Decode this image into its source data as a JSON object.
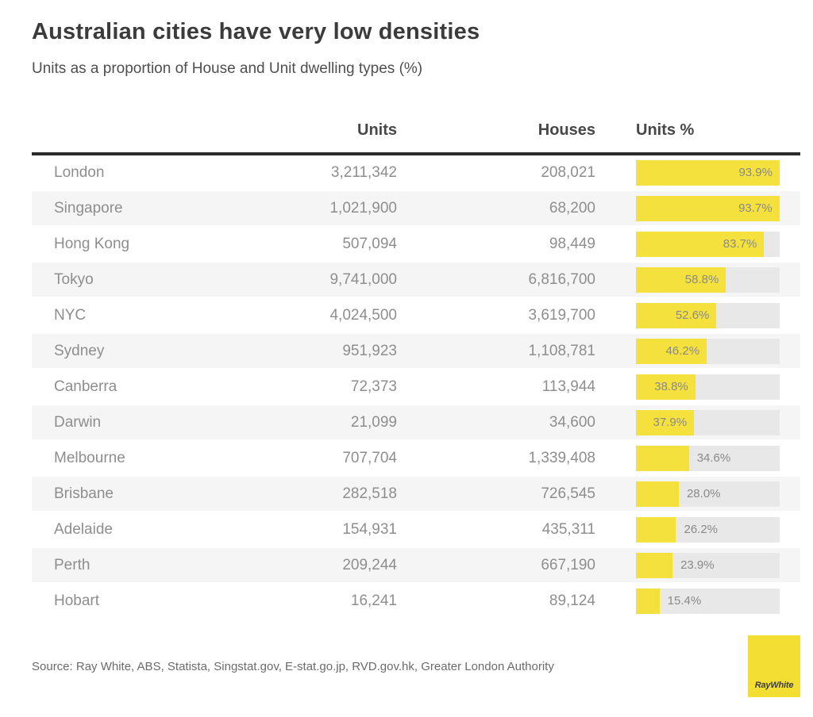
{
  "header": {
    "title": "Australian cities have very low densities",
    "subtitle": "Units as a proportion of House and Unit dwelling types (%)"
  },
  "table": {
    "columns": [
      "Units",
      "Houses",
      "Units %"
    ],
    "rows": [
      {
        "city": "London",
        "units": "3,211,342",
        "houses": "208,021",
        "pct": 93.9,
        "pct_label": "93.9%"
      },
      {
        "city": "Singapore",
        "units": "1,021,900",
        "houses": "68,200",
        "pct": 93.7,
        "pct_label": "93.7%"
      },
      {
        "city": "Hong Kong",
        "units": "507,094",
        "houses": "98,449",
        "pct": 83.7,
        "pct_label": "83.7%"
      },
      {
        "city": "Tokyo",
        "units": "9,741,000",
        "houses": "6,816,700",
        "pct": 58.8,
        "pct_label": "58.8%"
      },
      {
        "city": "NYC",
        "units": "4,024,500",
        "houses": "3,619,700",
        "pct": 52.6,
        "pct_label": "52.6%"
      },
      {
        "city": "Sydney",
        "units": "951,923",
        "houses": "1,108,781",
        "pct": 46.2,
        "pct_label": "46.2%"
      },
      {
        "city": "Canberra",
        "units": "72,373",
        "houses": "113,944",
        "pct": 38.8,
        "pct_label": "38.8%"
      },
      {
        "city": "Darwin",
        "units": "21,099",
        "houses": "34,600",
        "pct": 37.9,
        "pct_label": "37.9%"
      },
      {
        "city": "Melbourne",
        "units": "707,704",
        "houses": "1,339,408",
        "pct": 34.6,
        "pct_label": "34.6%"
      },
      {
        "city": "Brisbane",
        "units": "282,518",
        "houses": "726,545",
        "pct": 28.0,
        "pct_label": "28.0%"
      },
      {
        "city": "Adelaide",
        "units": "154,931",
        "houses": "435,311",
        "pct": 26.2,
        "pct_label": "26.2%"
      },
      {
        "city": "Perth",
        "units": "209,244",
        "houses": "667,190",
        "pct": 23.9,
        "pct_label": "23.9%"
      },
      {
        "city": "Hobart",
        "units": "16,241",
        "houses": "89,124",
        "pct": 15.4,
        "pct_label": "15.4%"
      }
    ]
  },
  "footer": {
    "source": "Source: Ray White, ABS, Statista, Singstat.gov, E-stat.go.jp, RVD.gov.hk, Greater London Authority",
    "logo_text": "RayWhite"
  },
  "colors": {
    "bar_yellow": "#f5e13d",
    "bar_track": "#e8e8e8",
    "row_stripe": "#f5f5f5",
    "logo_yellow": "#f3de33",
    "header_rule": "#2b2b2b"
  },
  "chart_data": {
    "type": "bar",
    "orientation": "horizontal",
    "title": "Australian cities have very low densities",
    "subtitle": "Units as a proportion of House and Unit dwelling types (%)",
    "categories": [
      "London",
      "Singapore",
      "Hong Kong",
      "Tokyo",
      "NYC",
      "Sydney",
      "Canberra",
      "Darwin",
      "Melbourne",
      "Brisbane",
      "Adelaide",
      "Perth",
      "Hobart"
    ],
    "series": [
      {
        "name": "Units",
        "values": [
          3211342,
          1021900,
          507094,
          9741000,
          4024500,
          951923,
          72373,
          21099,
          707704,
          282518,
          154931,
          209244,
          16241
        ]
      },
      {
        "name": "Houses",
        "values": [
          208021,
          68200,
          98449,
          6816700,
          3619700,
          1108781,
          113944,
          34600,
          1339408,
          726545,
          435311,
          667190,
          89124
        ]
      },
      {
        "name": "Units %",
        "values": [
          93.9,
          93.7,
          83.7,
          58.8,
          52.6,
          46.2,
          38.8,
          37.9,
          34.6,
          28.0,
          26.2,
          23.9,
          15.4
        ]
      }
    ],
    "bar_series_shown": "Units %",
    "bar_scale_max": 93.9,
    "legend": "none",
    "grid": false,
    "source": "Source: Ray White, ABS, Statista, Singstat.gov, E-stat.go.jp, RVD.gov.hk, Greater London Authority"
  }
}
